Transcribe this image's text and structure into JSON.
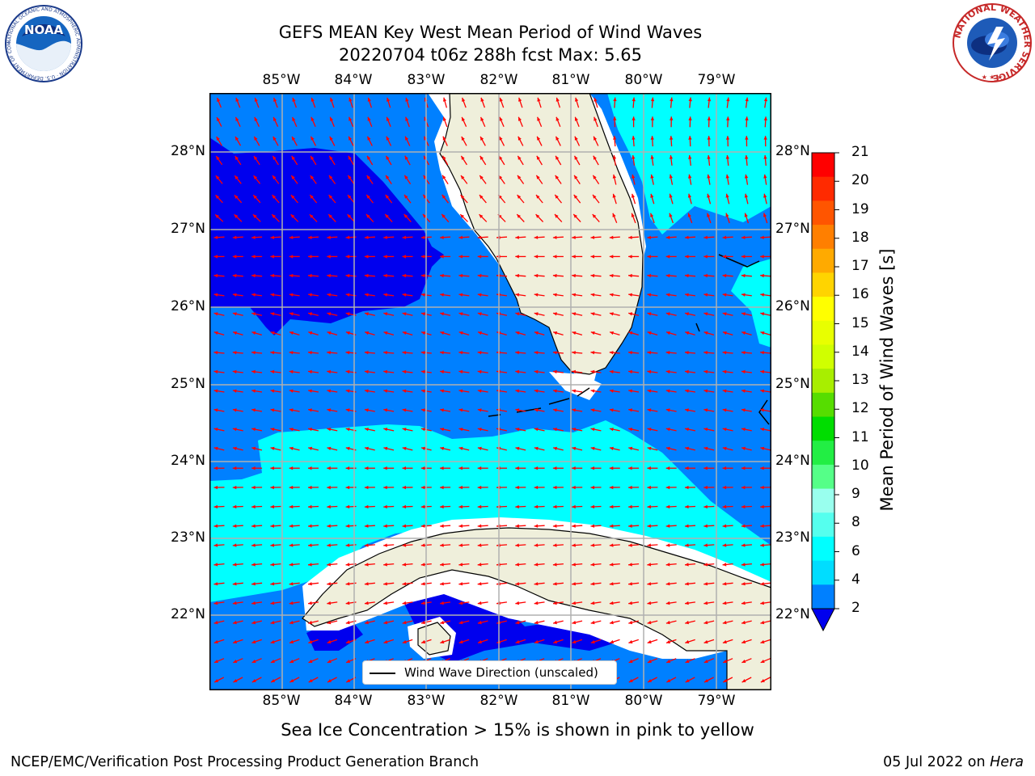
{
  "title": {
    "line1": "GEFS MEAN Key West Mean Period of Wind Waves",
    "line2": "20220704 t06z 288h fcst   Max: 5.65"
  },
  "axes": {
    "lon_ticks": [
      "85°W",
      "84°W",
      "83°W",
      "82°W",
      "81°W",
      "80°W",
      "79°W"
    ],
    "lat_ticks": [
      "28°N",
      "27°N",
      "26°N",
      "25°N",
      "24°N",
      "23°N",
      "22°N"
    ]
  },
  "colorbar": {
    "label": "Mean Period of Wind Waves [s]",
    "ticks": [
      "21",
      "20",
      "19",
      "18",
      "17",
      "16",
      "15",
      "14",
      "13",
      "12",
      "11",
      "10",
      "9",
      "8",
      "6",
      "4",
      "2"
    ],
    "colors": [
      "#ff0000",
      "#ff2a00",
      "#ff5500",
      "#ff7f00",
      "#ffaa00",
      "#ffd400",
      "#ffff00",
      "#e8ff00",
      "#d0ff00",
      "#a8ee00",
      "#56dd00",
      "#00dd00",
      "#22ee44",
      "#55ff88",
      "#99ffee",
      "#55ffee",
      "#00ffff",
      "#00ddff",
      "#0080ff"
    ]
  },
  "legend": {
    "label": "Wind Wave Direction (unscaled)"
  },
  "note": "Sea Ice Concentration > 15% is shown in pink to yellow",
  "footer": {
    "left": "NCEP/EMC/Verification Post Processing Product Generation Branch",
    "date": "05 Jul 2022 on ",
    "machine": "Hera"
  },
  "logos": {
    "noaa_text": "NOAA",
    "noaa_ring": "NATIONAL OCEANIC AND ATMOSPHERIC ADMINISTRATION · U.S. DEPARTMENT OF COMMERCE",
    "nws_ring": "NATIONAL WEATHER SERVICE"
  },
  "map_colors": {
    "band_2_4": "#0080ff",
    "band_4_6": "#00ffff",
    "band_below_2": "#0000ee",
    "land": "#efefdb",
    "arrow": "#ff0000",
    "grid": "#b0b0b0"
  }
}
